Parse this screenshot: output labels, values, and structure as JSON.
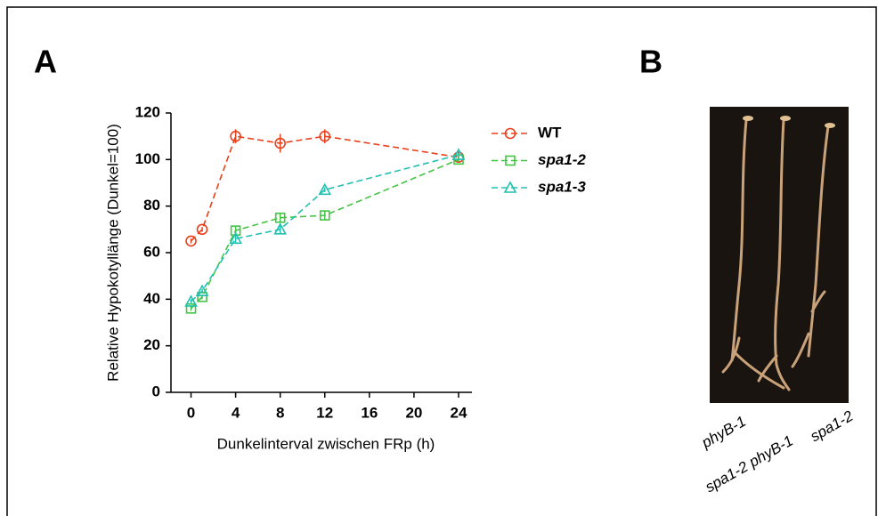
{
  "panel_labels": {
    "a": "A",
    "b": "B"
  },
  "chart_data": {
    "type": "line",
    "x_label": "Dunkelinterval zwischen FRp (h)",
    "y_label": "Relative Hypokotyllänge  (Dunkel=100)",
    "x": [
      0,
      1,
      4,
      8,
      12,
      24
    ],
    "series": [
      {
        "name": "WT",
        "color": "#e8401c",
        "marker": "circle",
        "values": [
          65,
          70,
          110,
          107,
          110,
          101
        ],
        "errors": [
          1,
          1,
          3,
          4,
          3,
          2
        ]
      },
      {
        "name": "spa1-2",
        "color": "#44c444",
        "marker": "square",
        "values": [
          36,
          41,
          69.5,
          75,
          76,
          100
        ],
        "errors": [
          1,
          1,
          2,
          2,
          2,
          1
        ]
      },
      {
        "name": "spa1-3",
        "color": "#22c0b0",
        "marker": "triangle",
        "values": [
          39,
          43.5,
          66,
          70,
          87,
          102
        ],
        "errors": [
          1,
          1,
          2,
          2,
          1,
          1
        ]
      }
    ],
    "xlim": [
      -1.8,
      25.2
    ],
    "xticks": [
      0,
      4,
      8,
      12,
      16,
      20,
      24
    ],
    "ylim": [
      0,
      120
    ],
    "yticks": [
      0,
      20,
      40,
      60,
      80,
      100,
      120
    ],
    "legend": "right"
  },
  "photo": {
    "labels": [
      "phyB-1",
      "spa1-2 phyB-1",
      "spa1-2"
    ]
  }
}
